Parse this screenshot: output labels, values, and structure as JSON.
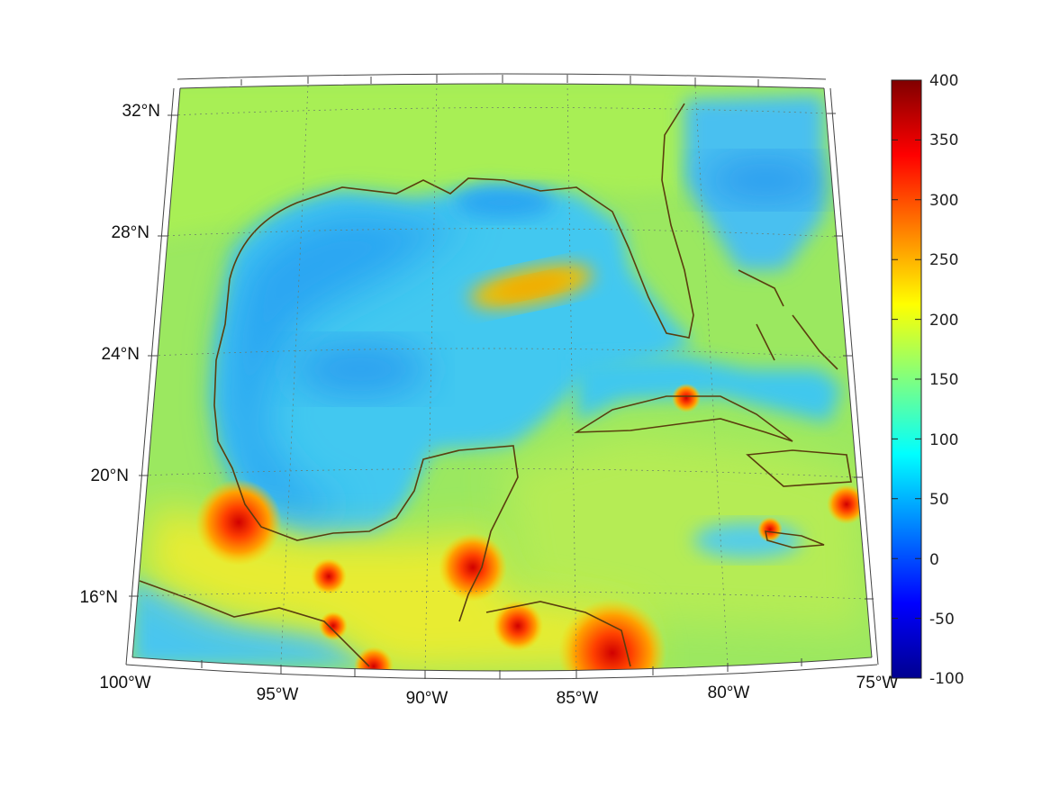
{
  "figure": {
    "lat_labels": [
      "32°N",
      "28°N",
      "24°N",
      "20°N",
      "16°N"
    ],
    "lon_labels": [
      "100°W",
      "95°W",
      "90°W",
      "85°W",
      "80°W",
      "75°W"
    ]
  },
  "colorbar": {
    "ticks": [
      "400",
      "350",
      "300",
      "250",
      "200",
      "150",
      "100",
      "50",
      "0",
      "-50",
      "-100"
    ],
    "min": -100,
    "max": 400,
    "colormap": "jet"
  },
  "colors": {
    "coastline": "#5a3e0e",
    "ocean_low": "#2fb0f5",
    "land_mid": "#a6ef5a",
    "hotspot": "#e02000"
  }
}
